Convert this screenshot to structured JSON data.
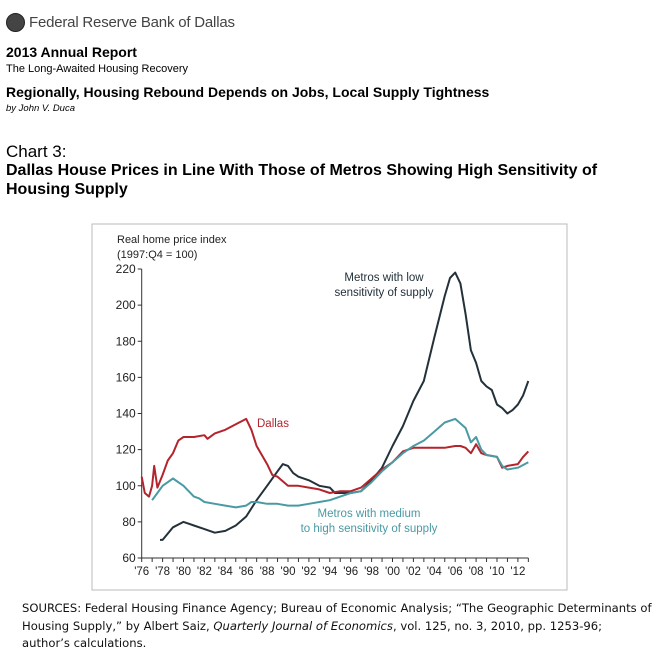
{
  "header": {
    "brand": "Federal Reserve Bank of Dallas",
    "report_title": "2013 Annual Report",
    "report_subtitle": "The Long-Awaited Housing Recovery",
    "article_title": "Regionally, Housing Rebound Depends on Jobs, Local Supply Tightness",
    "author": "by John V. Duca"
  },
  "chart_number": "Chart 3:",
  "chart_heading": "Dallas House Prices in Line With Those of Metros Showing High Sensitivity of Housing Supply",
  "sources": {
    "prefix": "SOURCES: Federal Housing Finance Agency; Bureau of Economic Analysis; “The Geographic Determinants of Housing Supply,” by Albert Saiz, ",
    "journal": "Quarterly Journal of Economics",
    "suffix": ", vol. 125, no. 3, 2010, pp. 1253-96; author’s calculations."
  },
  "chart_data": {
    "type": "line",
    "ylabel_line1": "Real home price index",
    "ylabel_line2": "(1997:Q4 = 100)",
    "ylim": [
      60,
      220
    ],
    "xlim": [
      1976,
      2013
    ],
    "yticks": [
      "60",
      "80",
      "100",
      "120",
      "140",
      "160",
      "180",
      "200",
      "220"
    ],
    "xticks": [
      "'76",
      "'78",
      "'80",
      "'82",
      "'84",
      "'86",
      "'88",
      "'90",
      "'92",
      "'94",
      "'96",
      "'98",
      "'00",
      "'02",
      "'04",
      "'06",
      "'08",
      "'10",
      "'12"
    ],
    "grid": false,
    "series": [
      {
        "name": "Metros with low sensitivity of supply",
        "label_lines": [
          "Metros with low",
          "sensitivity of supply"
        ],
        "color": "#23313a",
        "x": [
          1977.75,
          1978,
          1979,
          1980,
          1980.5,
          1981,
          1982,
          1983,
          1984,
          1985,
          1986,
          1987,
          1988,
          1989,
          1989.5,
          1990,
          1990.5,
          1991,
          1992,
          1993,
          1994,
          1994.5,
          1995,
          1996,
          1997,
          1998,
          1999,
          2000,
          2001,
          2002,
          2003,
          2004,
          2005,
          2005.5,
          2006,
          2006.5,
          2007,
          2007.5,
          2008,
          2008.5,
          2009,
          2009.5,
          2010,
          2010.5,
          2011,
          2011.5,
          2012,
          2012.5,
          2013
        ],
        "y": [
          70,
          70,
          77,
          80,
          79,
          78,
          76,
          74,
          75,
          78,
          83,
          92,
          100,
          108,
          112,
          111,
          107,
          105,
          103,
          100,
          99,
          96,
          96,
          96,
          97,
          103,
          110,
          122,
          133,
          147,
          158,
          182,
          205,
          215,
          218,
          212,
          195,
          175,
          168,
          158,
          155,
          153,
          145,
          143,
          140,
          142,
          145,
          150,
          158
        ]
      },
      {
        "name": "Dallas",
        "label_lines": [
          "Dallas"
        ],
        "color": "#b3242c",
        "x": [
          1976,
          1976.3,
          1976.7,
          1977,
          1977.2,
          1977.5,
          1978,
          1978.5,
          1979,
          1979.5,
          1980,
          1981,
          1982,
          1982.3,
          1983,
          1984,
          1985,
          1986,
          1986.5,
          1987,
          1988,
          1988.5,
          1989,
          1990,
          1991,
          1992,
          1993,
          1994,
          1995,
          1996,
          1997,
          1998,
          1999,
          2000,
          2001,
          2002,
          2003,
          2004,
          2005,
          2006,
          2006.5,
          2007,
          2007.5,
          2008,
          2008.5,
          2009,
          2010,
          2010.5,
          2011,
          2012,
          2012.5,
          2013
        ],
        "y": [
          105,
          96,
          94,
          100,
          111,
          99,
          106,
          114,
          118,
          125,
          127,
          127,
          128,
          126,
          129,
          131,
          134,
          137,
          131,
          122,
          112,
          106,
          105,
          100,
          100,
          99,
          98,
          96,
          97,
          97,
          99,
          104,
          109,
          113,
          119,
          121,
          121,
          121,
          121,
          122,
          122,
          121,
          118,
          123,
          118,
          117,
          116,
          110,
          111,
          112,
          116,
          119
        ]
      },
      {
        "name": "Metros with medium to high sensitivity of supply",
        "label_lines": [
          "Metros with medium",
          "to high sensitivity of supply"
        ],
        "color": "#4a9aa3",
        "x": [
          1977,
          1977.5,
          1978,
          1979,
          1980,
          1981,
          1981.5,
          1982,
          1983,
          1984,
          1985,
          1986,
          1986.5,
          1987,
          1988,
          1989,
          1990,
          1991,
          1992,
          1993,
          1994,
          1995,
          1996,
          1997,
          1998,
          1999,
          2000,
          2001,
          2002,
          2003,
          2004,
          2005,
          2006,
          2007,
          2007.5,
          2008,
          2008.5,
          2009,
          2010,
          2010.5,
          2011,
          2012,
          2013
        ],
        "y": [
          92,
          96,
          100,
          104,
          100,
          94,
          93,
          91,
          90,
          89,
          88,
          89,
          91,
          91,
          90,
          90,
          89,
          89,
          90,
          91,
          92,
          94,
          96,
          97,
          102,
          108,
          113,
          118,
          122,
          125,
          130,
          135,
          137,
          132,
          124,
          127,
          120,
          117,
          116,
          111,
          109,
          110,
          113
        ]
      }
    ]
  }
}
